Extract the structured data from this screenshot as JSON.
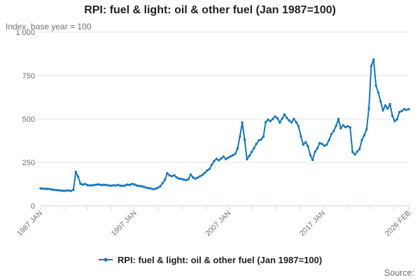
{
  "source_label": "Source:",
  "chart_data": {
    "type": "line",
    "title": "RPI: fuel & light: oil & other fuel (Jan 1987=100)",
    "subtitle": "Index, base year = 100",
    "ylabel": "Index, base year = 100",
    "ylim": [
      0,
      1000
    ],
    "grid": "horizontal-only",
    "grid_color": "#e6e6e6",
    "axis_color": "#ccd6eb",
    "text_color": "#707070",
    "legend_position": "bottom",
    "months_total": 469,
    "x_minor_tick_interval_months": 30,
    "x_tick_labels": [
      {
        "month": 0,
        "label": "1987 JAN"
      },
      {
        "month": 120,
        "label": "1997 JAN"
      },
      {
        "month": 240,
        "label": "2007 JAN"
      },
      {
        "month": 360,
        "label": "2017 JAN"
      },
      {
        "month": 469,
        "label": "2026 FEB"
      }
    ],
    "y_ticks": [
      {
        "value": 0,
        "label": "0"
      },
      {
        "value": 250,
        "label": "250"
      },
      {
        "value": 500,
        "label": "500"
      },
      {
        "value": 750,
        "label": "750"
      },
      {
        "value": 1000,
        "label": "1 000"
      }
    ],
    "series": [
      {
        "name": "RPI: fuel & light: oil & other fuel (Jan 1987=100)",
        "color": "#1776bc",
        "cadence": "quarterly from 1987 JAN, final point 2026 FEB",
        "values": [
          100,
          99,
          97,
          98,
          96,
          93,
          91,
          90,
          89,
          87,
          86,
          88,
          88,
          86,
          92,
          195,
          168,
          127,
          122,
          125,
          119,
          117,
          118,
          120,
          122,
          123,
          119,
          121,
          120,
          117,
          116,
          118,
          117,
          120,
          116,
          115,
          117,
          122,
          120,
          126,
          123,
          117,
          114,
          113,
          109,
          105,
          102,
          100,
          96,
          98,
          104,
          112,
          130,
          150,
          188,
          175,
          170,
          176,
          163,
          157,
          155,
          151,
          148,
          153,
          180,
          163,
          156,
          162,
          170,
          178,
          190,
          203,
          212,
          236,
          258,
          270,
          262,
          272,
          284,
          269,
          277,
          285,
          291,
          299,
          330,
          400,
          480,
          380,
          268,
          288,
          310,
          332,
          356,
          376,
          382,
          398,
          482,
          496,
          488,
          500,
          514,
          504,
          480,
          502,
          526,
          506,
          491,
          481,
          500,
          481,
          459,
          400,
          352,
          366,
          344,
          291,
          264,
          311,
          331,
          361,
          356,
          346,
          352,
          379,
          412,
          431,
          460,
          500,
          446,
          464,
          453,
          458,
          452,
          310,
          296,
          312,
          326,
          379,
          406,
          440,
          560,
          805,
          842,
          692,
          652,
          601,
          549,
          578,
          560,
          586,
          519,
          488,
          498,
          540,
          546,
          557,
          553,
          557
        ]
      }
    ]
  }
}
